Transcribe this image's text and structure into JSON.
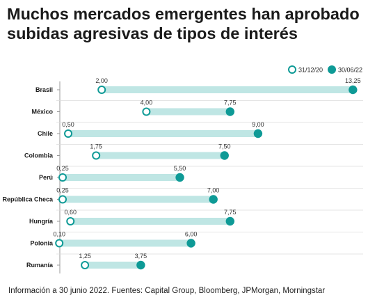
{
  "title": "Muchos mercados emergentes han aprobado subidas agresivas de tipos de interés",
  "footnote": "Información a 30 junio 2022. Fuentes: Capital Group, Bloomberg, JPMorgan, Morningstar",
  "colors": {
    "accent": "#0e9a96",
    "range_band": "#bfe6e4",
    "grid": "#dddddd",
    "axis": "#999999"
  },
  "chart_data": {
    "type": "dumbbell",
    "legend": {
      "placement": "top-right"
    },
    "grid": true,
    "xlim": [
      0,
      14
    ],
    "categories": [
      "Brasil",
      "México",
      "Chile",
      "Colombia",
      "Perú",
      "República Checa",
      "Hungría",
      "Polonia",
      "Rumanía"
    ],
    "series": [
      {
        "name": "31/12/20",
        "marker": "hollow",
        "values": [
          2.0,
          4.0,
          0.5,
          1.75,
          0.25,
          0.25,
          0.6,
          0.1,
          1.25
        ],
        "labels": [
          "2,00",
          "4,00",
          "0,50",
          "1,75",
          "0,25",
          "0,25",
          "0,60",
          "0,10",
          "1,25"
        ]
      },
      {
        "name": "30/06/22",
        "marker": "filled",
        "values": [
          13.25,
          7.75,
          9.0,
          7.5,
          5.5,
          7.0,
          7.75,
          6.0,
          3.75
        ],
        "labels": [
          "13,25",
          "7,75",
          "9,00",
          "7,50",
          "5,50",
          "7,00",
          "7,75",
          "6,00",
          "3,75"
        ]
      }
    ]
  }
}
